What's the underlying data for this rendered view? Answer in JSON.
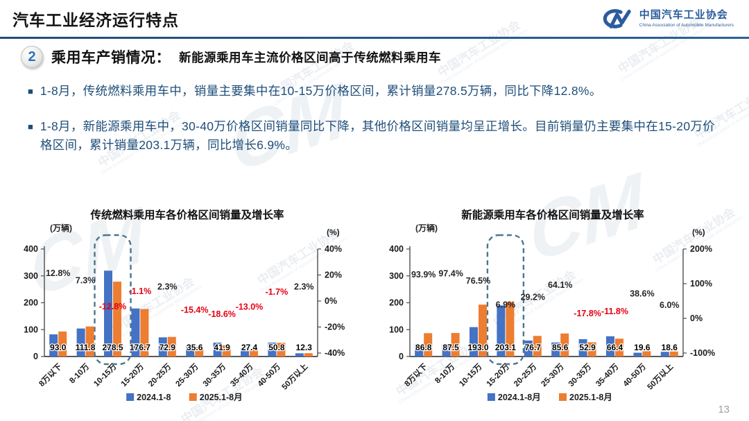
{
  "page": {
    "title": "汽车工业经济运行特点",
    "page_number": "13"
  },
  "logo": {
    "monogram": "CM",
    "name_cn": "中国汽车工业协会",
    "name_en": "China Association of Automobile Manufacturers"
  },
  "section": {
    "number": "2",
    "heading": "乘用车产销情况：",
    "subheading": "新能源乘用车主流价格区间高于传统燃料乘用车"
  },
  "bullets": [
    "1-8月，传统燃料乘用车中，销量主要集中在10-15万价格区间，累计销量278.5万辆，同比下降12.8%。",
    "1-8月，新能源乘用车中，30-40万价格区间销量同比下降，其他价格区间销量均呈正增长。目前销量仍主要集中在15-20万价格区间，累计销量203.1万辆，同比增长6.9%。"
  ],
  "watermark": {
    "cn": "中国汽车工业协会",
    "en": "China Association of Automobile Manufacturers",
    "monogram": "CM"
  },
  "colors": {
    "bar_2024": "#4472c4",
    "bar_2025": "#ed7d31",
    "growth_positive": "#262626",
    "growth_negative": "#e60012",
    "navy_text": "#1f4e79",
    "divider": "#1f4e79",
    "logo_blue": "#2b5c9e",
    "highlight_stroke": "#4a7590"
  },
  "chart_data": [
    {
      "type": "bar",
      "title": "传统燃料乘用车各价格区间销量及增长率",
      "unit_left": "(万辆)",
      "unit_right": "(%)",
      "categories": [
        "8万以下",
        "8-10万",
        "10-15万",
        "15-20万",
        "20-25万",
        "25-30万",
        "30-35万",
        "35-40万",
        "40-50万",
        "50万以上"
      ],
      "series": [
        {
          "name": "2024.1-8",
          "color": "#4472c4",
          "values": [
            82.4,
            104.2,
            319.4,
            178.7,
            71.3,
            42.1,
            51.5,
            31.5,
            51.7,
            12.0
          ]
        },
        {
          "name": "2025.1-8月",
          "color": "#ed7d31",
          "values": [
            93.0,
            111.8,
            278.5,
            176.7,
            72.9,
            35.6,
            41.9,
            27.4,
            50.8,
            12.3
          ]
        }
      ],
      "value_labels": [
        "93.0",
        "111.8",
        "278.5",
        "176.7",
        "72.9",
        "35.6",
        "41.9",
        "27.4",
        "50.8",
        "12.3"
      ],
      "growth_values": [
        12.8,
        7.3,
        -12.8,
        -1.1,
        2.3,
        -15.4,
        -18.6,
        -13.0,
        -1.7,
        2.3
      ],
      "growth_labels": [
        "12.8%",
        "7.3%",
        "-12.8%",
        "-1.1%",
        "2.3%",
        "-15.4%",
        "-18.6%",
        "-13.0%",
        "-1.7%",
        "2.3%"
      ],
      "left_axis": {
        "ticks": [
          400,
          300,
          200,
          100,
          0
        ],
        "max": 400,
        "min": 0
      },
      "right_axis": {
        "ticks": [
          40,
          20,
          0,
          -20,
          -40
        ],
        "tick_labels": [
          "40%",
          "20%",
          "0%",
          "-20%",
          "-40%"
        ],
        "max": 40,
        "min": -40
      },
      "highlight_index": 2,
      "legend_position": "bottom",
      "grid": false
    },
    {
      "type": "bar",
      "title": "新能源乘用车各价格区间销量及增长率",
      "unit_left": "(万辆)",
      "unit_right": "(%)",
      "categories": [
        "8万以下",
        "8-10万",
        "10-15万",
        "15-20万",
        "20-25万",
        "25-30万",
        "30-35万",
        "35-40万",
        "40-50万",
        "50万以上"
      ],
      "series": [
        {
          "name": "2024.1-8月",
          "color": "#4472c4",
          "values": [
            44.8,
            44.3,
            109.4,
            190.0,
            59.4,
            52.2,
            64.4,
            75.3,
            14.1,
            17.5
          ]
        },
        {
          "name": "2025.1-8月",
          "color": "#ed7d31",
          "values": [
            86.8,
            87.5,
            193.0,
            203.1,
            76.7,
            85.6,
            52.9,
            66.4,
            19.6,
            18.6
          ]
        }
      ],
      "value_labels": [
        "86.8",
        "87.5",
        "193.0",
        "203.1",
        "76.7",
        "85.6",
        "52.9",
        "66.4",
        "19.6",
        "18.6"
      ],
      "growth_values": [
        93.9,
        97.4,
        76.5,
        6.9,
        29.2,
        64.1,
        -17.8,
        -11.8,
        38.6,
        6.0
      ],
      "growth_labels": [
        "93.9%",
        "97.4%",
        "76.5%",
        "6.9%",
        "29.2%",
        "64.1%",
        "-17.8%",
        "-11.8%",
        "38.6%",
        "6.0%"
      ],
      "left_axis": {
        "ticks": [
          400,
          300,
          200,
          100,
          0
        ],
        "max": 400,
        "min": 0
      },
      "right_axis": {
        "ticks": [
          200,
          100,
          0,
          -100
        ],
        "tick_labels": [
          "200%",
          "100%",
          "0%",
          "-100%"
        ],
        "max": 200,
        "min": -100
      },
      "highlight_index": 3,
      "legend_position": "bottom",
      "grid": false
    }
  ]
}
